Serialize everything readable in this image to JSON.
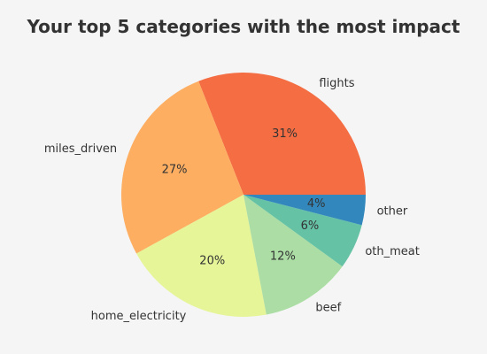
{
  "chart_data": {
    "type": "pie",
    "title": "Your top 5 categories with the most impact",
    "start_angle_deg": 0,
    "direction": "counterclockwise",
    "slices": [
      {
        "label": "flights",
        "value": 31,
        "pct_label": "31%",
        "color": "#f46d43"
      },
      {
        "label": "miles_driven",
        "value": 27,
        "pct_label": "27%",
        "color": "#fdae61"
      },
      {
        "label": "home_electricity",
        "value": 20,
        "pct_label": "20%",
        "color": "#e6f598"
      },
      {
        "label": "beef",
        "value": 12,
        "pct_label": "12%",
        "color": "#abdda4"
      },
      {
        "label": "oth_meat",
        "value": 6,
        "pct_label": "6%",
        "color": "#66c2a5"
      },
      {
        "label": "other",
        "value": 4,
        "pct_label": "4%",
        "color": "#3288bd"
      }
    ]
  }
}
